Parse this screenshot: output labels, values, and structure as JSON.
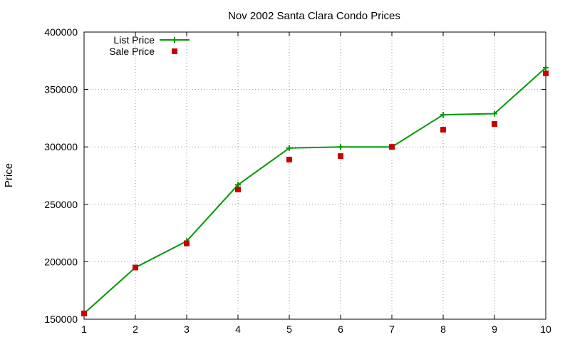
{
  "chart_data": {
    "type": "line",
    "title": "Nov 2002 Santa Clara Condo Prices",
    "xlabel": "",
    "ylabel": "Price",
    "xlim": [
      1,
      10
    ],
    "ylim": [
      150000,
      400000
    ],
    "xticks": [
      1,
      2,
      3,
      4,
      5,
      6,
      7,
      8,
      9,
      10
    ],
    "yticks": [
      150000,
      200000,
      250000,
      300000,
      350000,
      400000
    ],
    "grid": true,
    "legend_position": "top-left",
    "x": [
      1,
      2,
      3,
      4,
      5,
      6,
      7,
      8,
      9,
      10
    ],
    "series": [
      {
        "name": "List Price",
        "style": "linespoints",
        "marker": "plus",
        "color": "#009900",
        "values": [
          155000,
          195000,
          218000,
          267000,
          299000,
          300000,
          300000,
          328000,
          329000,
          369000
        ]
      },
      {
        "name": "Sale Price",
        "style": "points",
        "marker": "square",
        "color": "#cc0000",
        "values": [
          155000,
          195000,
          216000,
          263000,
          289000,
          292000,
          300000,
          315000,
          320000,
          364000
        ]
      }
    ]
  }
}
